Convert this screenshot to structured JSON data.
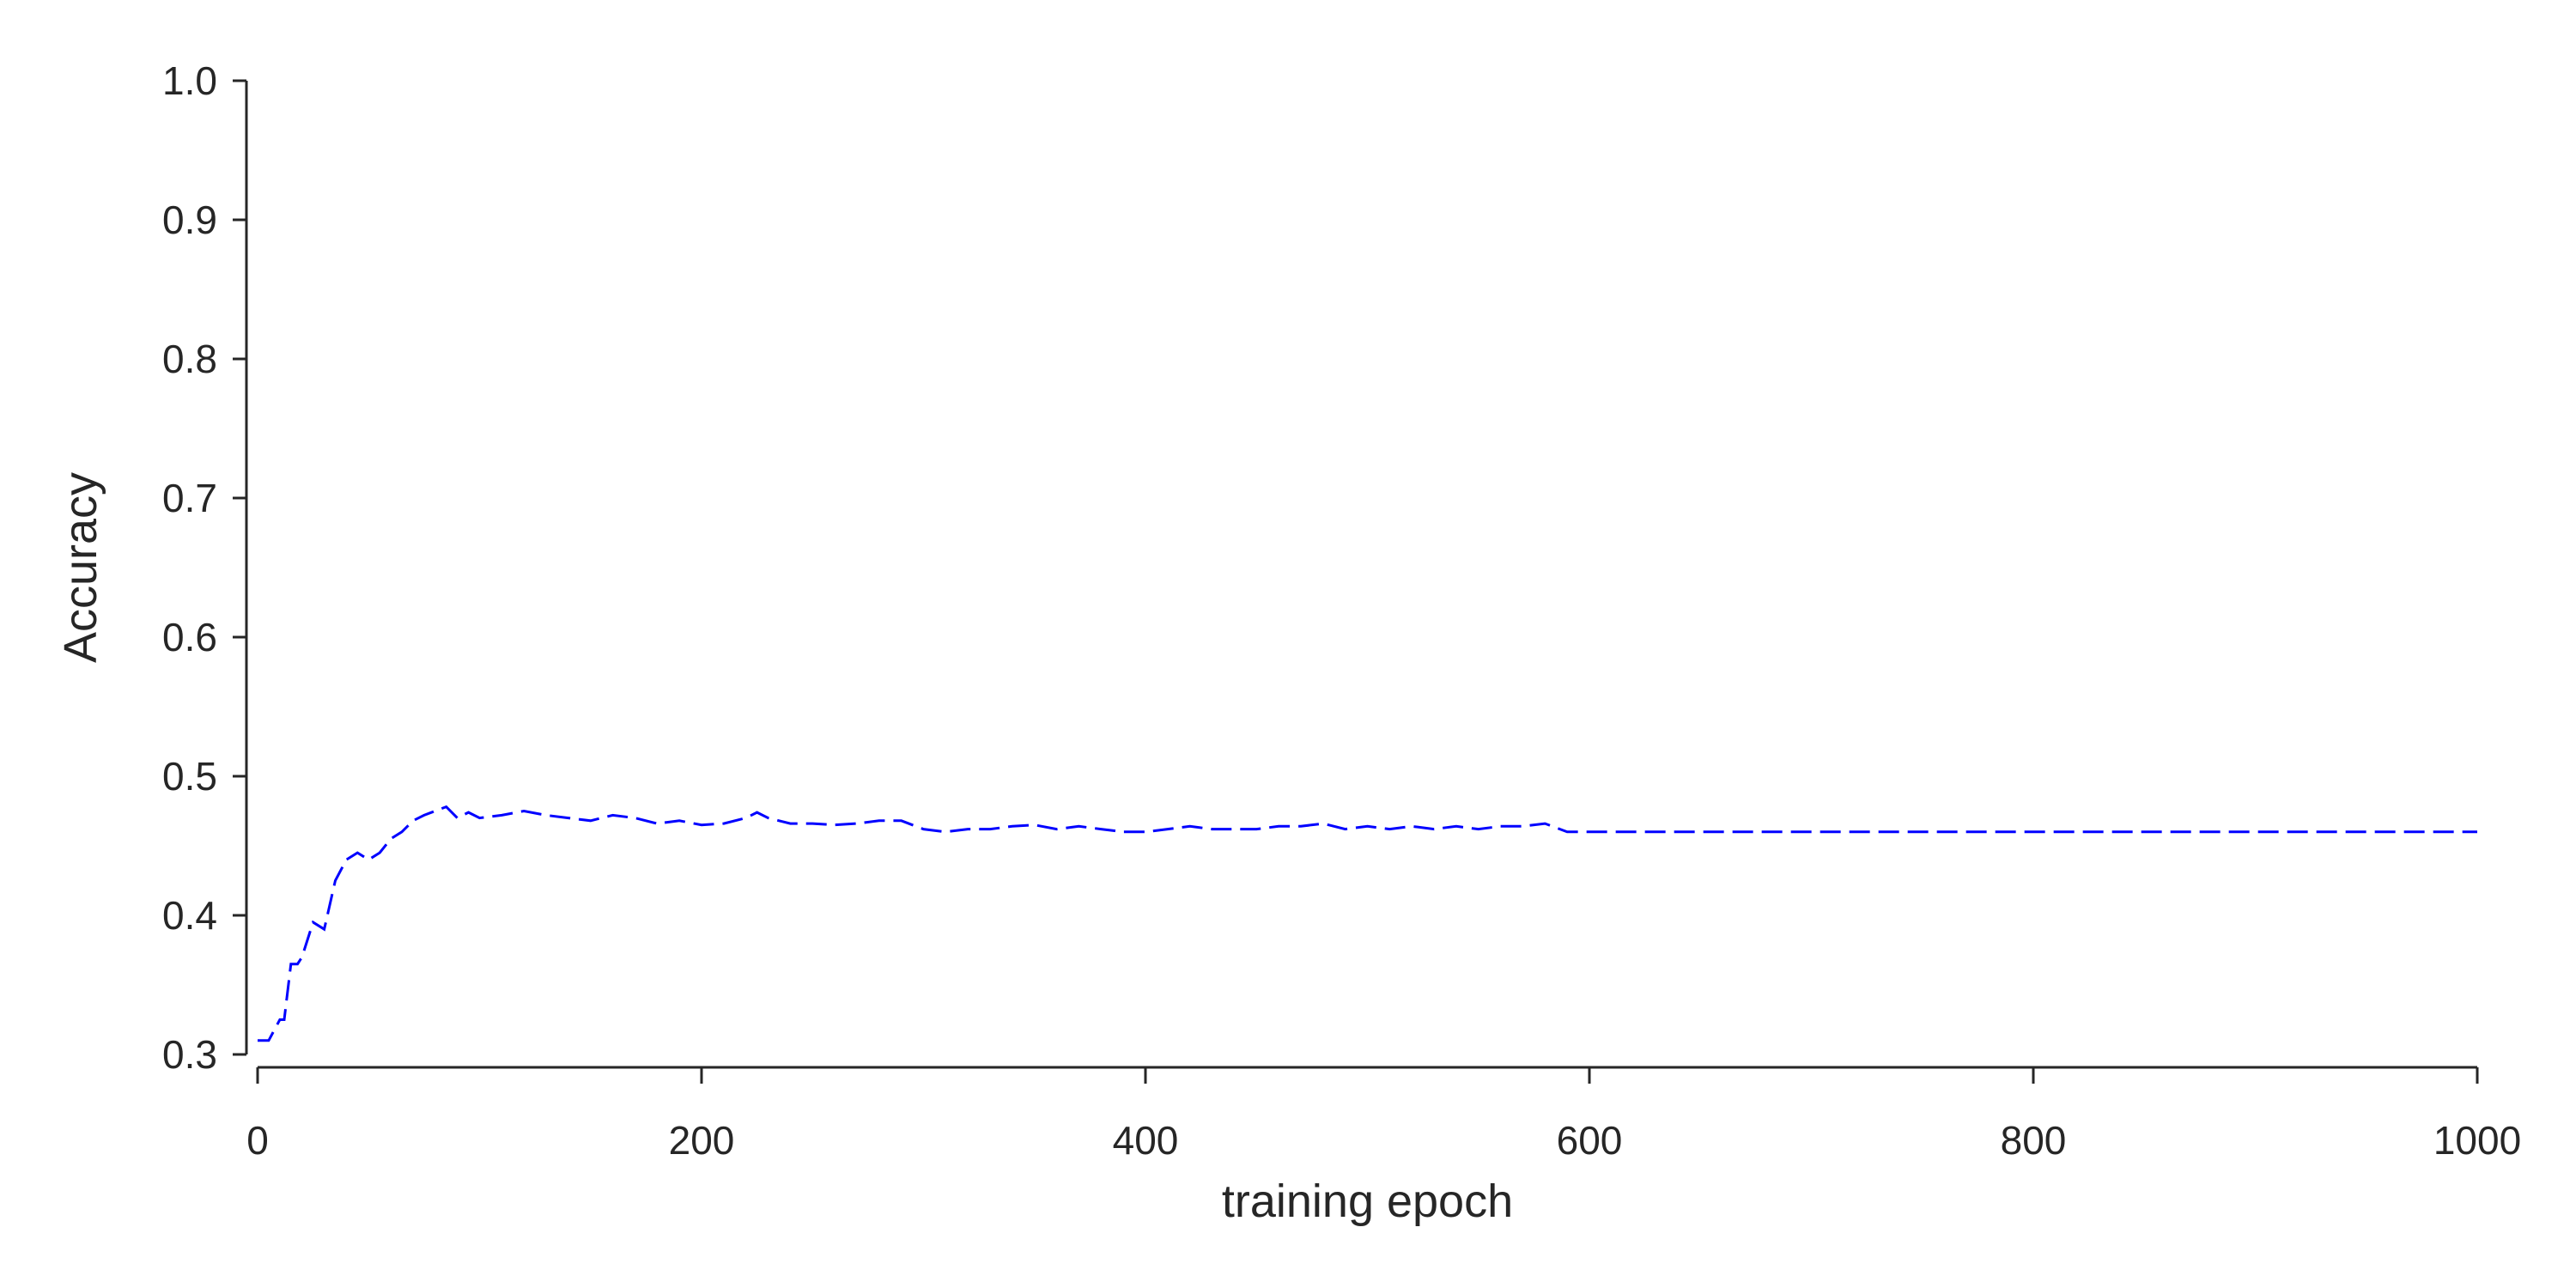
{
  "chart_data": {
    "type": "line",
    "title": "",
    "xlabel": "training epoch",
    "ylabel": "Accuracy",
    "xlim": [
      0,
      1000
    ],
    "ylim": [
      0.3,
      1.0
    ],
    "xticks": [
      "0",
      "200",
      "400",
      "600",
      "800",
      "1000"
    ],
    "yticks": [
      "0.3",
      "0.4",
      "0.5",
      "0.6",
      "0.7",
      "0.8",
      "0.9",
      "1.0"
    ],
    "grid": false,
    "legend": "none",
    "series": [
      {
        "color": "#0000ff",
        "line_style": "dashed",
        "x": [
          0,
          5,
          10,
          12,
          15,
          18,
          20,
          25,
          30,
          35,
          40,
          45,
          50,
          55,
          60,
          65,
          70,
          75,
          80,
          85,
          90,
          95,
          100,
          110,
          120,
          130,
          140,
          150,
          160,
          170,
          180,
          190,
          200,
          210,
          220,
          225,
          230,
          240,
          250,
          260,
          270,
          280,
          290,
          300,
          310,
          320,
          330,
          340,
          350,
          360,
          370,
          380,
          390,
          400,
          410,
          420,
          430,
          440,
          450,
          460,
          470,
          480,
          490,
          500,
          510,
          520,
          530,
          540,
          550,
          560,
          570,
          580,
          590,
          600,
          700,
          800,
          900,
          1000
        ],
        "y": [
          0.31,
          0.31,
          0.325,
          0.325,
          0.365,
          0.365,
          0.37,
          0.395,
          0.39,
          0.425,
          0.44,
          0.445,
          0.44,
          0.445,
          0.455,
          0.46,
          0.468,
          0.472,
          0.475,
          0.478,
          0.47,
          0.474,
          0.47,
          0.472,
          0.475,
          0.472,
          0.47,
          0.468,
          0.472,
          0.47,
          0.466,
          0.468,
          0.465,
          0.466,
          0.47,
          0.474,
          0.47,
          0.466,
          0.466,
          0.465,
          0.466,
          0.468,
          0.468,
          0.462,
          0.46,
          0.462,
          0.462,
          0.464,
          0.465,
          0.462,
          0.464,
          0.462,
          0.46,
          0.46,
          0.462,
          0.464,
          0.462,
          0.462,
          0.462,
          0.464,
          0.464,
          0.466,
          0.462,
          0.464,
          0.462,
          0.464,
          0.462,
          0.464,
          0.462,
          0.464,
          0.464,
          0.466,
          0.46,
          0.46,
          0.46,
          0.46,
          0.46,
          0.46
        ]
      }
    ]
  }
}
